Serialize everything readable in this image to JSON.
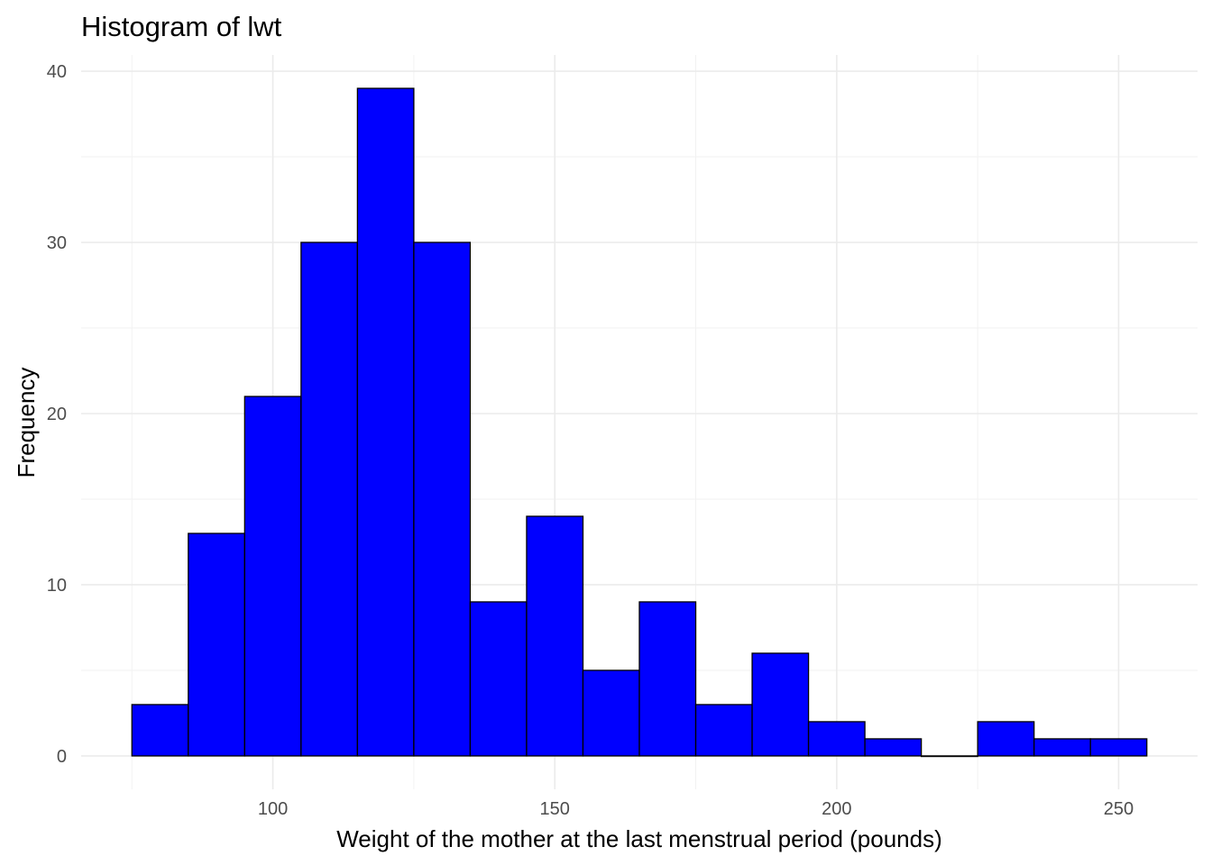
{
  "chart_data": {
    "type": "bar",
    "subtype": "histogram",
    "title": "Histogram of lwt",
    "xlabel": "Weight of the mother at the last menstrual period (pounds)",
    "ylabel": "Frequency",
    "bin_width": 10,
    "bins": [
      {
        "start": 75,
        "end": 85,
        "count": 3
      },
      {
        "start": 85,
        "end": 95,
        "count": 13
      },
      {
        "start": 95,
        "end": 105,
        "count": 21
      },
      {
        "start": 105,
        "end": 115,
        "count": 30
      },
      {
        "start": 115,
        "end": 125,
        "count": 39
      },
      {
        "start": 125,
        "end": 135,
        "count": 30
      },
      {
        "start": 135,
        "end": 145,
        "count": 9
      },
      {
        "start": 145,
        "end": 155,
        "count": 14
      },
      {
        "start": 155,
        "end": 165,
        "count": 5
      },
      {
        "start": 165,
        "end": 175,
        "count": 9
      },
      {
        "start": 175,
        "end": 185,
        "count": 3
      },
      {
        "start": 185,
        "end": 195,
        "count": 6
      },
      {
        "start": 195,
        "end": 205,
        "count": 2
      },
      {
        "start": 205,
        "end": 215,
        "count": 1
      },
      {
        "start": 215,
        "end": 225,
        "count": 0
      },
      {
        "start": 225,
        "end": 235,
        "count": 2
      },
      {
        "start": 235,
        "end": 245,
        "count": 1
      },
      {
        "start": 245,
        "end": 255,
        "count": 1
      }
    ],
    "xlim": [
      66,
      264
    ],
    "ylim": [
      -1.95,
      40.95
    ],
    "x_ticks": [
      100,
      150,
      200,
      250
    ],
    "y_ticks": [
      0,
      10,
      20,
      30,
      40
    ],
    "bar_fill": "#0000ff",
    "bar_outline": "#000000",
    "grid": true,
    "legend": "none"
  }
}
